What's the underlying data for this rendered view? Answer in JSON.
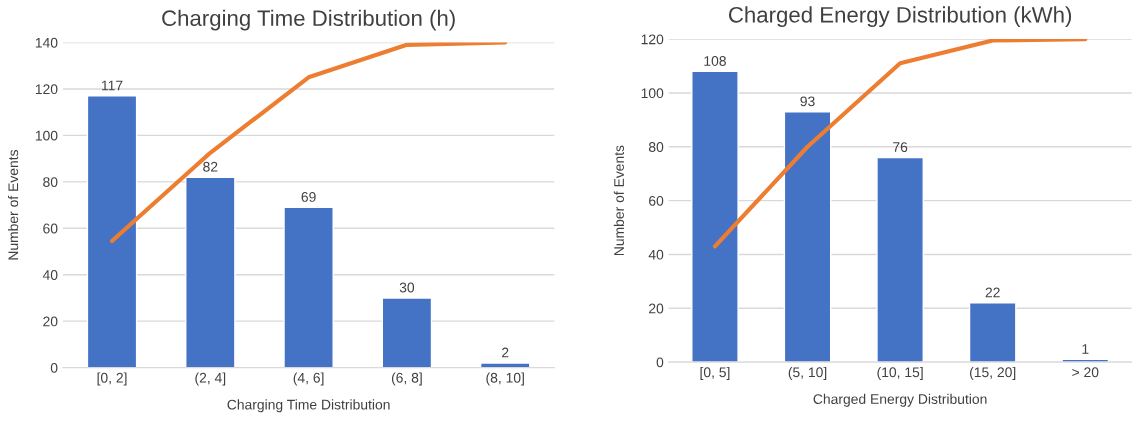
{
  "chart_data": [
    {
      "type": "bar",
      "title": "Charging Time Distribution (h)",
      "xlabel": "Charging Time Distribution",
      "ylabel": "Number of Events",
      "categories": [
        "[0, 2]",
        "(2, 4]",
        "(4, 6]",
        "(6, 8]",
        "(8, 10]"
      ],
      "ylim": [
        0,
        140
      ],
      "yticks": [
        0,
        20,
        40,
        60,
        80,
        100,
        120,
        140
      ],
      "grid": "y",
      "legend": false,
      "series": [
        {
          "color": "#4472c4",
          "values": [
            117,
            82,
            69,
            30,
            2
          ],
          "value_labels": [
            "117",
            "82",
            "69",
            "30",
            "2"
          ]
        },
        {
          "type": "line",
          "color": "#ed7d31",
          "values": [
            54.5,
            92.5,
            125,
            139,
            140
          ]
        }
      ]
    },
    {
      "type": "bar",
      "title": "Charged Energy Distribution (kWh)",
      "xlabel": "Charged Energy Distribution",
      "ylabel": "Number of Events",
      "categories": [
        "[0, 5]",
        "(5, 10]",
        "(10, 15]",
        "(15, 20]",
        "> 20"
      ],
      "ylim": [
        0,
        120
      ],
      "yticks": [
        0,
        20,
        40,
        60,
        80,
        100,
        120
      ],
      "grid": "y",
      "legend": false,
      "series": [
        {
          "color": "#4472c4",
          "values": [
            108,
            93,
            76,
            22,
            1
          ],
          "value_labels": [
            "108",
            "93",
            "76",
            "22",
            "1"
          ]
        },
        {
          "type": "line",
          "color": "#ed7d31",
          "values": [
            43,
            80,
            111,
            119.5,
            120
          ]
        }
      ]
    }
  ]
}
